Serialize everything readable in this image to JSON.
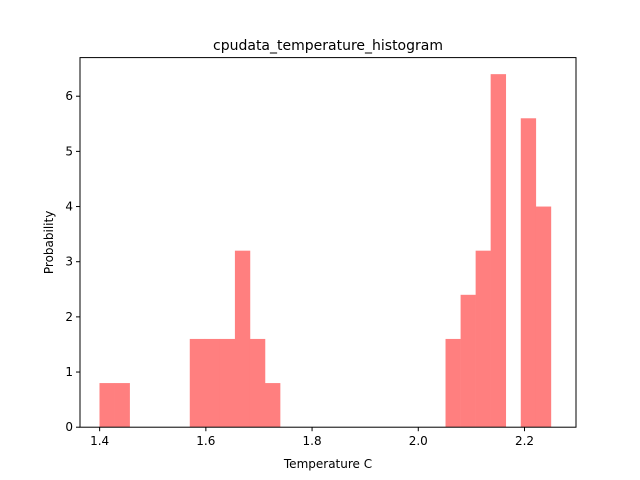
{
  "chart_data": {
    "type": "bar",
    "title": "cpudata_temperature_histogram",
    "xlabel": "Temperature C",
    "ylabel": "Probability",
    "xlim": [
      1.363,
      2.297
    ],
    "ylim": [
      0,
      6.7
    ],
    "xticks": [
      1.4,
      1.6,
      1.8,
      2.0,
      2.2
    ],
    "yticks": [
      0,
      1,
      2,
      3,
      4,
      5,
      6
    ],
    "xtick_labels": [
      "1.4",
      "1.6",
      "1.8",
      "2.0",
      "2.2"
    ],
    "ytick_labels": [
      "0",
      "1",
      "2",
      "3",
      "4",
      "5",
      "6"
    ],
    "bin_edges": [
      1.3997,
      1.428,
      1.4564,
      1.4847,
      1.513,
      1.5413,
      1.5697,
      1.598,
      1.6263,
      1.6547,
      1.683,
      1.7113,
      1.7397,
      1.768,
      1.7963,
      1.8247,
      1.853,
      1.8813,
      1.9097,
      1.938,
      1.9663,
      1.9947,
      2.023,
      2.0513,
      2.0797,
      2.108,
      2.1363,
      2.1647,
      2.193,
      2.2213,
      2.2497
    ],
    "values": [
      0.8,
      0.8,
      0,
      0,
      0,
      0,
      1.6,
      1.6,
      1.6,
      3.2,
      1.6,
      0.8,
      0,
      0,
      0,
      0,
      0,
      0,
      0,
      0,
      0,
      0,
      0,
      1.6,
      2.4,
      3.2,
      6.4,
      0,
      5.6,
      4.0
    ],
    "bar_color": "#ff7f7f",
    "grid": false,
    "legend": "none"
  }
}
